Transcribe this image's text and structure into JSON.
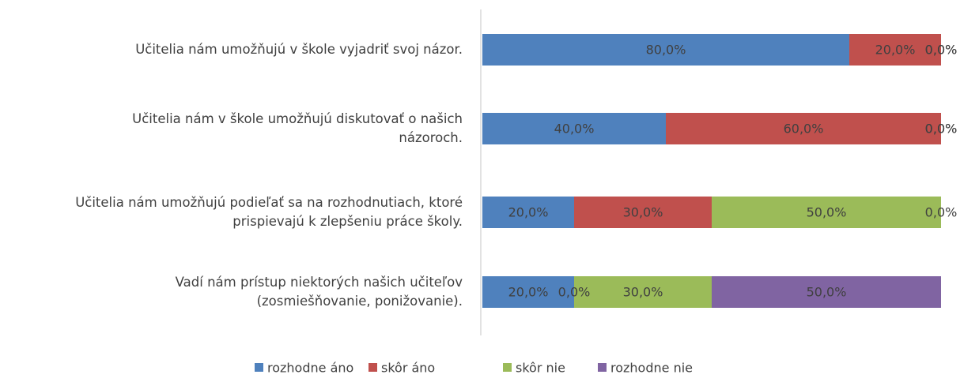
{
  "chart_data": {
    "type": "stacked-bar-horizontal",
    "categories": [
      "Učitelia nám umožňujú v škole vyjadriť svoj názor.",
      "Učitelia nám v škole umožňujú diskutovať o našich\nnázoroch.",
      "Učitelia nám umožňujú podieľať sa na rozhodnutiach, ktoré\nprispievajú k zlepšeniu práce školy.",
      "Vadí nám prístup niektorých našich učiteľov\n(zosmiešňovanie, ponižovanie)."
    ],
    "series": [
      {
        "name": "rozhodne áno",
        "color": "#4f81bd",
        "values": [
          80,
          40,
          20,
          20
        ],
        "value_labels": [
          "80,0%",
          "40,0%",
          "20,0%",
          "20,0%"
        ]
      },
      {
        "name": "skôr áno",
        "color": "#c0504d",
        "values": [
          20,
          60,
          30,
          0
        ],
        "value_labels": [
          "20,0%",
          "60,0%",
          "30,0%",
          "0,0%"
        ]
      },
      {
        "name": "skôr nie",
        "color": "#9bbb59",
        "values": [
          0,
          0,
          50,
          30
        ],
        "value_labels": [
          "0,0%",
          "0,0%",
          "50,0%",
          "30,0%"
        ]
      },
      {
        "name": "rozhodne nie",
        "color": "#8064a2",
        "values": [
          0,
          0,
          0,
          50
        ],
        "value_labels": [
          "0,0%",
          "0,0%",
          "0,0%",
          "50,0%"
        ]
      }
    ],
    "xlim": [
      0,
      100
    ],
    "legend": "bottom"
  }
}
